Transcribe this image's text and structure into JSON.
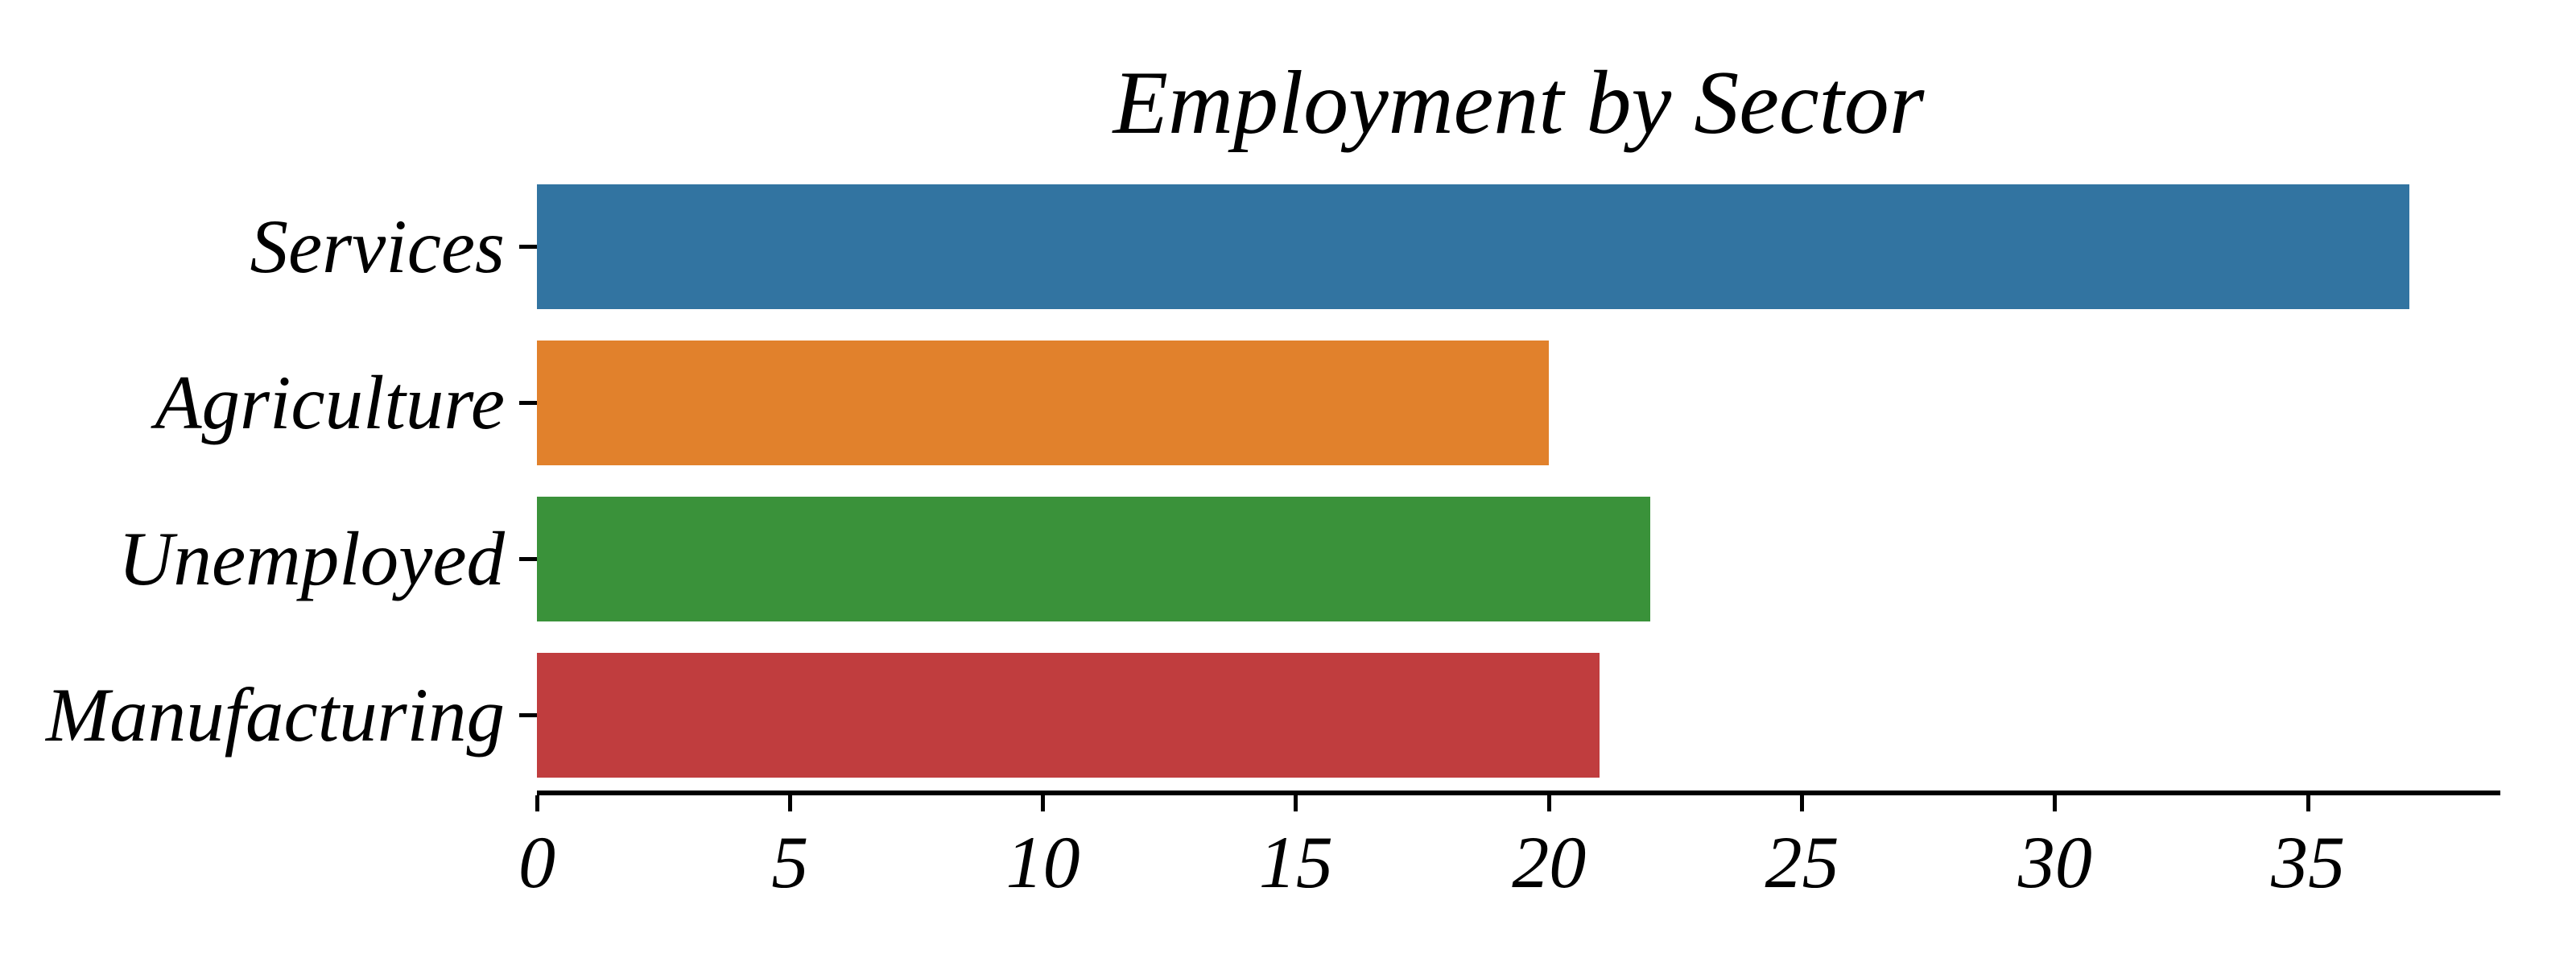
{
  "figure": {
    "background": "#ffffff",
    "text_color": "#000000",
    "axis_color": "#000000"
  },
  "chart_data": {
    "type": "bar",
    "orientation": "horizontal",
    "title": "Employment by Sector",
    "categories": [
      "Services",
      "Agriculture",
      "Unemployed",
      "Manufacturing"
    ],
    "values": [
      37,
      20,
      22,
      21
    ],
    "bar_colors": [
      "#3274a1",
      "#e1812c",
      "#3a923a",
      "#c03d3e"
    ],
    "xlabel": "",
    "ylabel": "",
    "x_ticks": [
      0,
      5,
      10,
      15,
      20,
      25,
      30,
      35
    ],
    "xlim": [
      0,
      38.8
    ],
    "grid": false,
    "legend_position": "none"
  }
}
